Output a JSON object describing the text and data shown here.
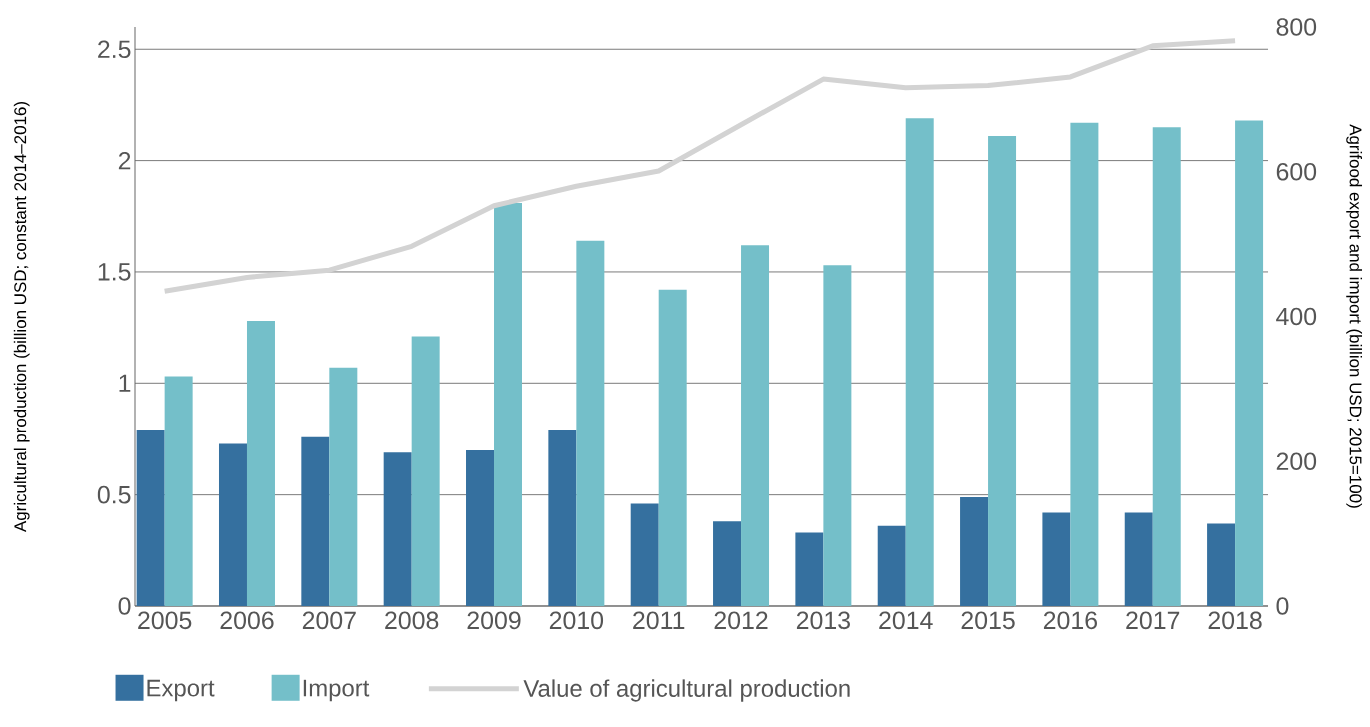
{
  "chart_data": {
    "type": "bar",
    "ylabel": "Agricultural production (billion USD; constant 2014–2016)",
    "y2label": "Agrifood export and import (billion USD; 2015=100)",
    "categories": [
      "2005",
      "2006",
      "2007",
      "2008",
      "2009",
      "2010",
      "2011",
      "2012",
      "2013",
      "2014",
      "2015",
      "2016",
      "2017",
      "2018"
    ],
    "series": [
      {
        "name": "Export",
        "color": "#35709f",
        "values": [
          0.79,
          0.73,
          0.76,
          0.69,
          0.7,
          0.79,
          0.46,
          0.38,
          0.33,
          0.36,
          0.49,
          0.42,
          0.42,
          0.37
        ]
      },
      {
        "name": "Import",
        "color": "#74bfc9",
        "values": [
          1.03,
          1.28,
          1.07,
          1.21,
          1.81,
          1.64,
          1.42,
          1.62,
          1.53,
          2.19,
          2.11,
          2.17,
          2.15,
          2.18
        ]
      },
      {
        "name": "Value of agricultural production",
        "type": "line",
        "axis": "y2",
        "color": "#d3d3d3",
        "values": [
          435,
          454,
          464,
          497,
          553,
          580,
          601,
          665,
          728,
          716,
          719,
          731,
          774,
          781
        ]
      }
    ],
    "ylim": [
      0,
      2.6
    ],
    "yticks": [
      0,
      0.5,
      1,
      1.5,
      2,
      2.5
    ],
    "y2lim": [
      0,
      800
    ],
    "y2ticks": [
      0,
      200,
      400,
      600,
      800
    ],
    "grid": "y",
    "legend": "bottom",
    "marker": "none"
  }
}
